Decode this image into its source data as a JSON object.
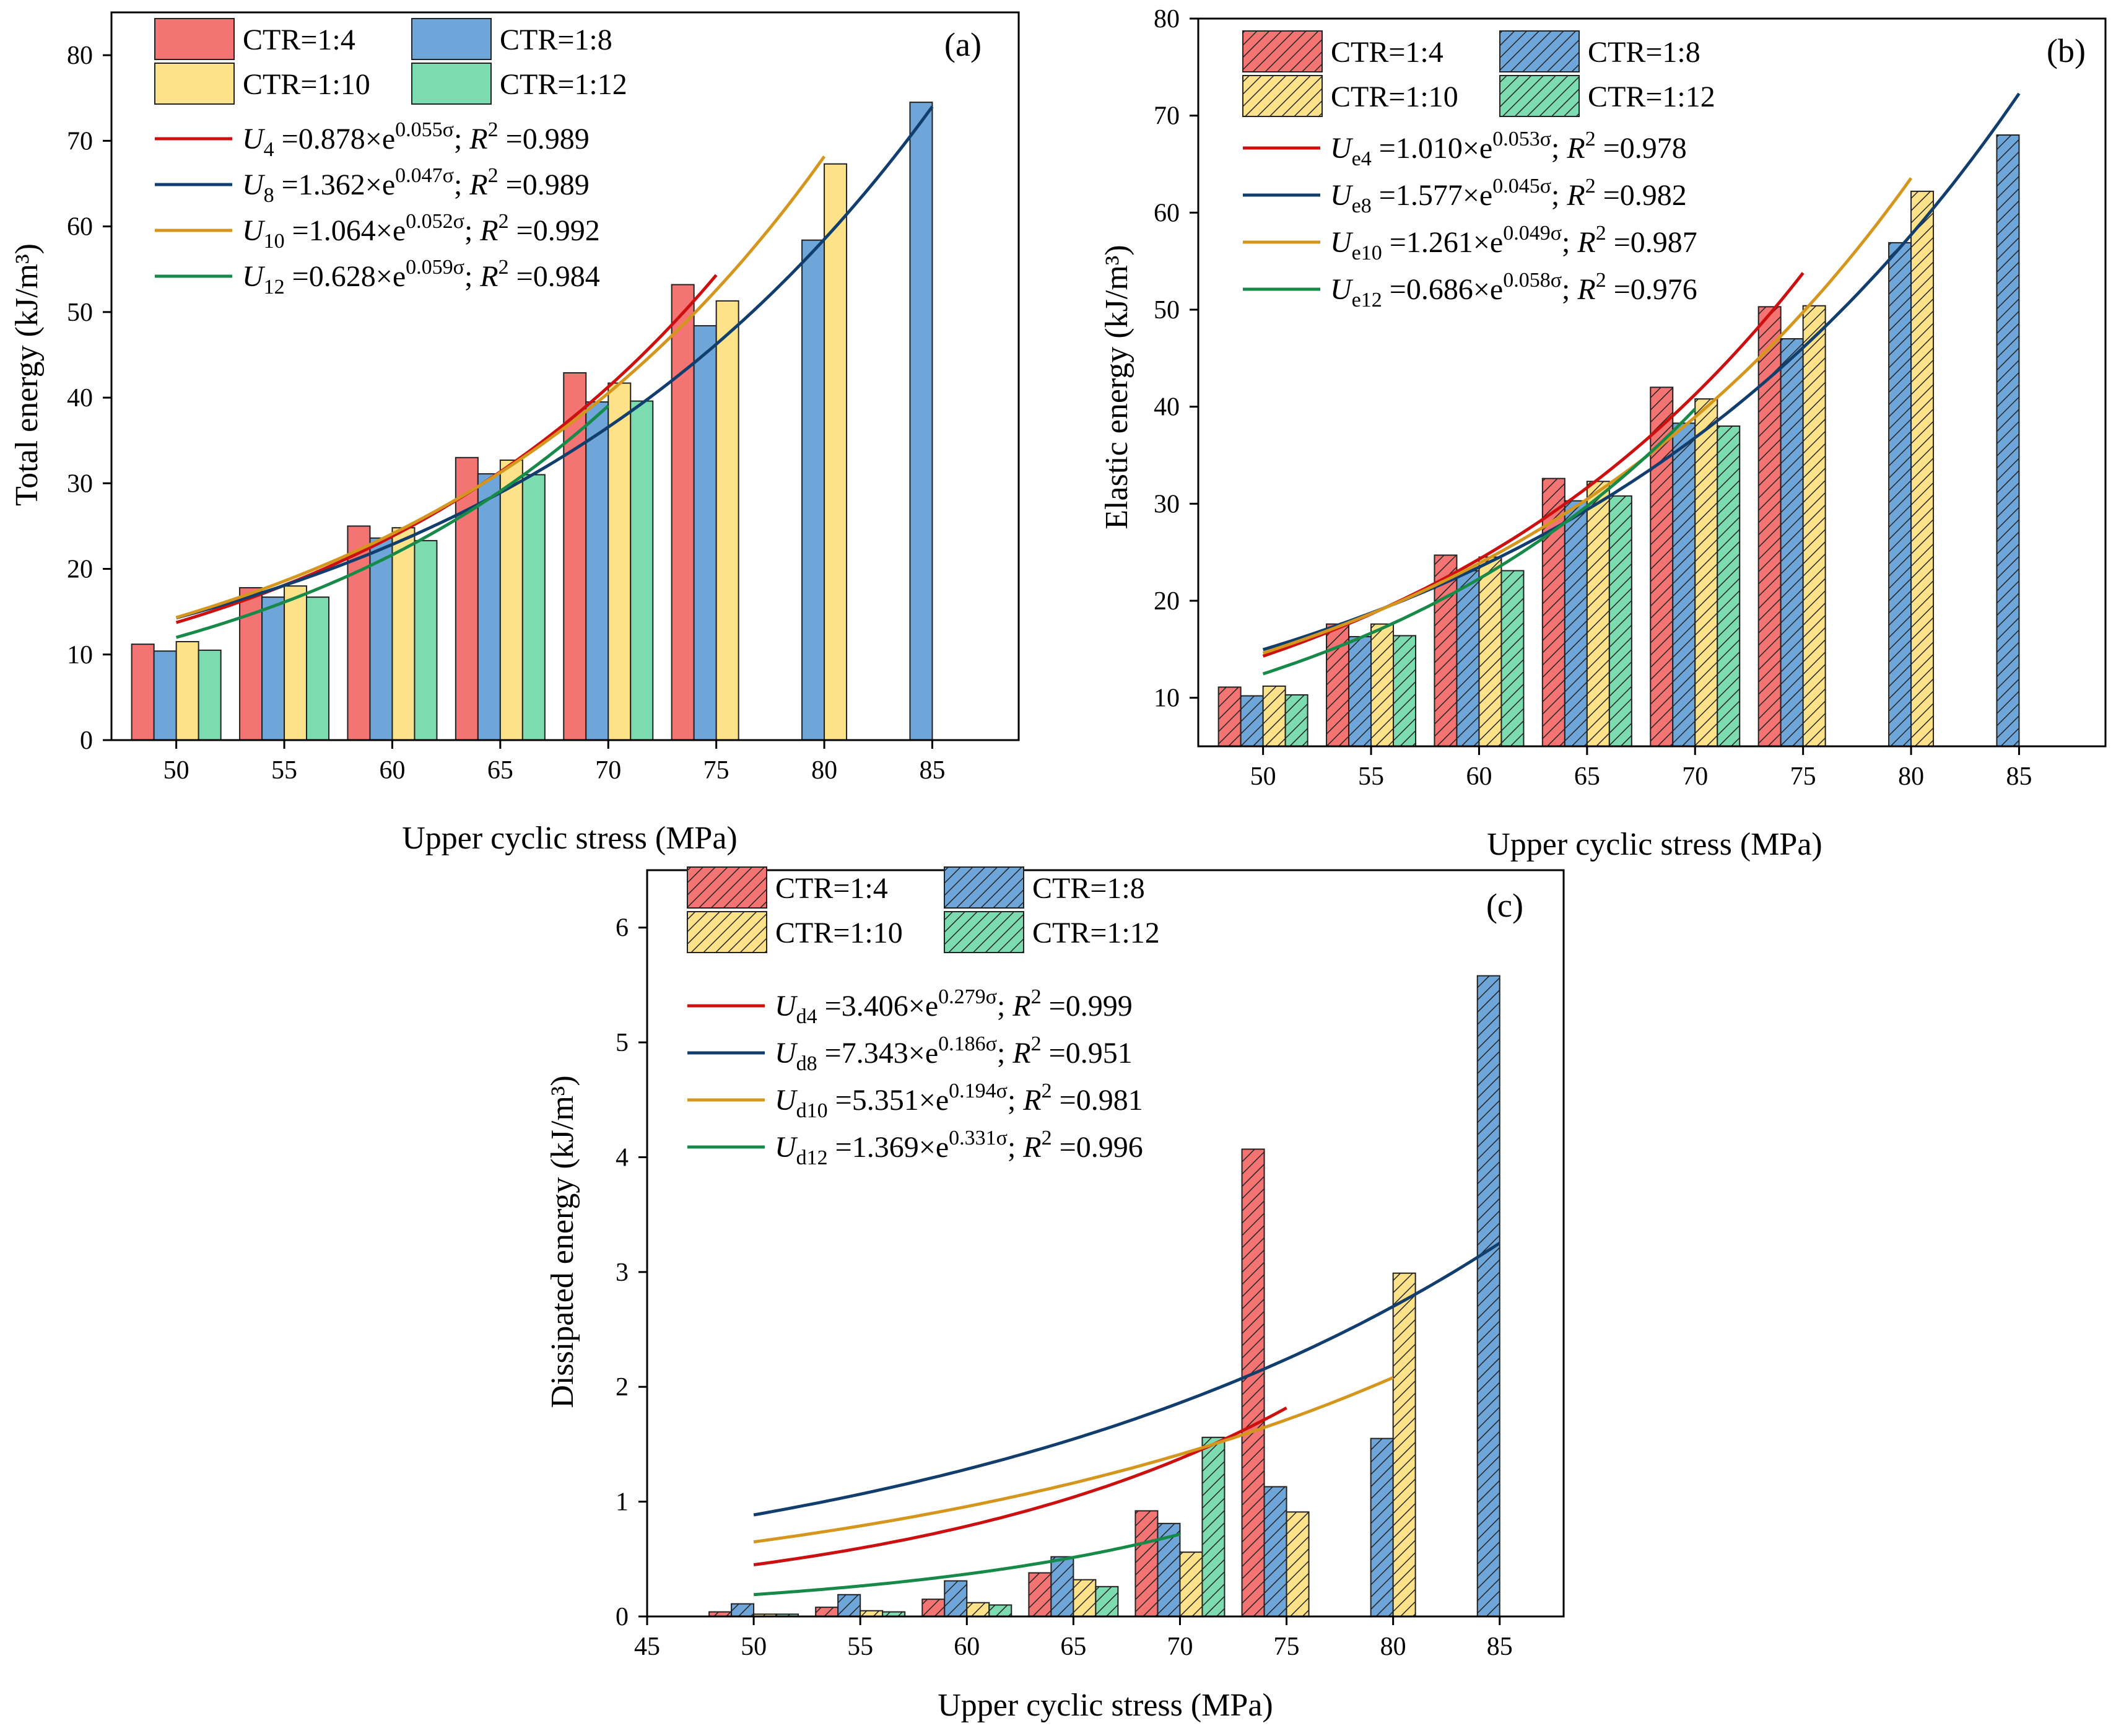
{
  "chart_data": [
    {
      "id": "a",
      "type": "bar",
      "panel_label": "(a)",
      "xlabel": "Upper cyclic stress (MPa)",
      "ylabel": "Total energy (kJ/m³)",
      "xlim": [
        47,
        89
      ],
      "ylim": [
        0,
        85
      ],
      "xticks": [
        50,
        55,
        60,
        65,
        70,
        75,
        80,
        85
      ],
      "yticks": [
        0,
        10,
        20,
        30,
        40,
        50,
        60,
        70,
        80
      ],
      "hatched": false,
      "series": [
        {
          "name": "CTR=1:4",
          "color": "#f47373",
          "x": [
            50,
            55,
            60,
            65,
            70,
            75
          ],
          "values": [
            11.2,
            17.8,
            25.0,
            33.0,
            42.9,
            53.2
          ]
        },
        {
          "name": "CTR=1:8",
          "color": "#6ea6d9",
          "x": [
            50,
            55,
            60,
            65,
            70,
            75,
            80,
            85
          ],
          "values": [
            10.4,
            16.7,
            23.6,
            31.1,
            39.5,
            48.4,
            58.4,
            74.5
          ]
        },
        {
          "name": "CTR=1:10",
          "color": "#fde28a",
          "x": [
            50,
            55,
            60,
            65,
            70,
            75,
            80
          ],
          "values": [
            11.5,
            18.0,
            24.8,
            32.7,
            41.7,
            51.3,
            67.3
          ]
        },
        {
          "name": "CTR=1:12",
          "color": "#7ddbb0",
          "x": [
            50,
            55,
            60,
            65,
            70
          ],
          "values": [
            10.5,
            16.7,
            23.3,
            31.0,
            39.6
          ]
        }
      ],
      "fits": [
        {
          "color": "#cc1010",
          "a": 0.878,
          "b": 0.055,
          "x_range": [
            50,
            75
          ],
          "sym": "U",
          "sub": "4",
          "coef": "0.878",
          "exp": "0.055σ",
          "r2": "0.989"
        },
        {
          "color": "#123e6d",
          "a": 1.362,
          "b": 0.047,
          "x_range": [
            50,
            85
          ],
          "sym": "U",
          "sub": "8",
          "coef": "1.362",
          "exp": "0.047σ",
          "r2": "0.989"
        },
        {
          "color": "#d4961c",
          "a": 1.064,
          "b": 0.052,
          "x_range": [
            50,
            80
          ],
          "sym": "U",
          "sub": "10",
          "coef": "1.064",
          "exp": "0.052σ",
          "r2": "0.992"
        },
        {
          "color": "#178a4a",
          "a": 0.628,
          "b": 0.059,
          "x_range": [
            50,
            70
          ],
          "sym": "U",
          "sub": "12",
          "coef": "0.628",
          "exp": "0.059σ",
          "r2": "0.984"
        }
      ]
    },
    {
      "id": "b",
      "type": "bar",
      "panel_label": "(b)",
      "xlabel": "Upper cyclic stress (MPa)",
      "ylabel": "Elastic energy (kJ/m³)",
      "xlim": [
        47,
        89
      ],
      "ylim": [
        5,
        80
      ],
      "xticks": [
        50,
        55,
        60,
        65,
        70,
        75,
        80,
        85
      ],
      "yticks": [
        10,
        20,
        30,
        40,
        50,
        60,
        70,
        80
      ],
      "hatched": true,
      "series": [
        {
          "name": "CTR=1:4",
          "color": "#f47373",
          "x": [
            50,
            55,
            60,
            65,
            70,
            75
          ],
          "values": [
            11.1,
            17.6,
            24.7,
            32.6,
            42.0,
            50.3
          ]
        },
        {
          "name": "CTR=1:8",
          "color": "#6ea6d9",
          "x": [
            50,
            55,
            60,
            65,
            70,
            75,
            80,
            85
          ],
          "values": [
            10.2,
            16.3,
            23.1,
            30.3,
            38.3,
            47.0,
            56.9,
            68.0
          ]
        },
        {
          "name": "CTR=1:10",
          "color": "#fde28a",
          "x": [
            50,
            55,
            60,
            65,
            70,
            75,
            80
          ],
          "values": [
            11.2,
            17.6,
            24.5,
            32.3,
            40.8,
            50.4,
            62.2
          ]
        },
        {
          "name": "CTR=1:12",
          "color": "#7ddbb0",
          "x": [
            50,
            55,
            60,
            65,
            70
          ],
          "values": [
            10.3,
            16.4,
            23.1,
            30.8,
            38.0
          ]
        }
      ],
      "fits": [
        {
          "color": "#cc1010",
          "a": 1.01,
          "b": 0.053,
          "x_range": [
            50,
            75
          ],
          "sym": "U",
          "sub": "e4",
          "coef": "1.010",
          "exp": "0.053σ",
          "r2": "0.978"
        },
        {
          "color": "#123e6d",
          "a": 1.577,
          "b": 0.045,
          "x_range": [
            50,
            85
          ],
          "sym": "U",
          "sub": "e8",
          "coef": "1.577",
          "exp": "0.045σ",
          "r2": "0.982"
        },
        {
          "color": "#d4961c",
          "a": 1.261,
          "b": 0.049,
          "x_range": [
            50,
            80
          ],
          "sym": "U",
          "sub": "e10",
          "coef": "1.261",
          "exp": "0.049σ",
          "r2": "0.987"
        },
        {
          "color": "#178a4a",
          "a": 0.686,
          "b": 0.058,
          "x_range": [
            50,
            70
          ],
          "sym": "U",
          "sub": "e12",
          "coef": "0.686",
          "exp": "0.058σ",
          "r2": "0.976"
        }
      ]
    },
    {
      "id": "c",
      "type": "bar",
      "panel_label": "(c)",
      "xlabel": "Upper cyclic stress (MPa)",
      "ylabel": "Dissipated energy (kJ/m³)",
      "xlim": [
        45,
        88
      ],
      "ylim": [
        0,
        6.5
      ],
      "xticks": [
        45,
        50,
        55,
        60,
        65,
        70,
        75,
        80,
        85
      ],
      "yticks": [
        0,
        1,
        2,
        3,
        4,
        5,
        6
      ],
      "hatched": true,
      "series": [
        {
          "name": "CTR=1:4",
          "color": "#f47373",
          "x": [
            50,
            55,
            60,
            65,
            70,
            75
          ],
          "values": [
            0.04,
            0.08,
            0.15,
            0.38,
            0.92,
            4.07
          ]
        },
        {
          "name": "CTR=1:8",
          "color": "#6ea6d9",
          "x": [
            50,
            55,
            60,
            65,
            70,
            75,
            80,
            85
          ],
          "values": [
            0.11,
            0.19,
            0.31,
            0.52,
            0.81,
            1.13,
            1.55,
            5.58
          ]
        },
        {
          "name": "CTR=1:10",
          "color": "#fde28a",
          "x": [
            50,
            55,
            60,
            65,
            70,
            75,
            80
          ],
          "values": [
            0.02,
            0.05,
            0.12,
            0.32,
            0.56,
            0.91,
            2.99
          ]
        },
        {
          "name": "CTR=1:12",
          "color": "#7ddbb0",
          "x": [
            50,
            55,
            60,
            65,
            70
          ],
          "values": [
            0.02,
            0.04,
            0.1,
            0.26,
            1.56
          ]
        }
      ],
      "fits": [
        {
          "color": "#cc1010",
          "a": 3.406,
          "b": 0.279,
          "x_range": [
            50,
            75
          ],
          "sym": "U",
          "sub": "d4",
          "coef": "3.406",
          "exp": "0.279σ",
          "r2": "0.999"
        },
        {
          "color": "#123e6d",
          "a": 7.343,
          "b": 0.186,
          "x_range": [
            50,
            85
          ],
          "sym": "U",
          "sub": "d8",
          "coef": "7.343",
          "exp": "0.186σ",
          "r2": "0.951"
        },
        {
          "color": "#d4961c",
          "a": 5.351,
          "b": 0.194,
          "x_range": [
            50,
            80
          ],
          "sym": "U",
          "sub": "d10",
          "coef": "5.351",
          "exp": "0.194σ",
          "r2": "0.981"
        },
        {
          "color": "#178a4a",
          "a": 1.369,
          "b": 0.331,
          "x_range": [
            50,
            70
          ],
          "sym": "U",
          "sub": "d12",
          "coef": "1.369",
          "exp": "0.331σ",
          "r2": "0.996"
        }
      ]
    }
  ]
}
